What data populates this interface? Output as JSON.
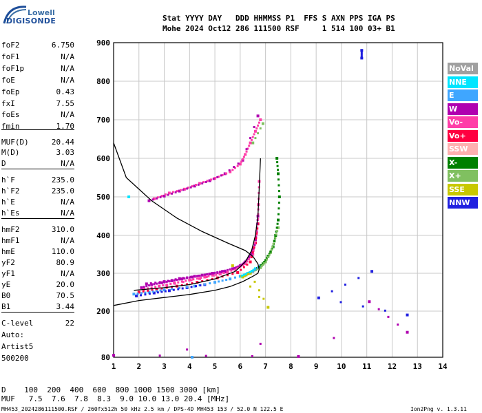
{
  "logo": {
    "line1": "Lowell",
    "line2": "DIGISONDE"
  },
  "header": {
    "row1": "Stat YYYY DAY   DDD HHMMSS P1  FFS S AXN PPS IGA PS",
    "row2": "Mohe 2024 Oct12 286 111500 RSF     1 514 100 03+ B1"
  },
  "params": [
    {
      "name": "foF2",
      "value": "6.750"
    },
    {
      "name": "foF1",
      "value": "N/A"
    },
    {
      "name": "foF1p",
      "value": "N/A"
    },
    {
      "name": "foE",
      "value": "N/A"
    },
    {
      "name": "foEp",
      "value": "0.43"
    },
    {
      "name": "fxI",
      "value": "7.55"
    },
    {
      "name": "foEs",
      "value": "N/A"
    },
    {
      "name": "fmin",
      "value": "1.70"
    },
    {
      "name": "MUF(D)",
      "value": "20.44"
    },
    {
      "name": "M(D)",
      "value": "3.03"
    },
    {
      "name": "D",
      "value": "N/A"
    },
    {
      "name": "h`F",
      "value": "235.0"
    },
    {
      "name": "h`F2",
      "value": "235.0"
    },
    {
      "name": "h`E",
      "value": "N/A"
    },
    {
      "name": "h`Es",
      "value": "N/A"
    },
    {
      "name": "hmF2",
      "value": "310.0"
    },
    {
      "name": "hmF1",
      "value": "N/A"
    },
    {
      "name": "hmE",
      "value": "110.0"
    },
    {
      "name": "yF2",
      "value": "80.9"
    },
    {
      "name": "yF1",
      "value": "N/A"
    },
    {
      "name": "yE",
      "value": "20.0"
    },
    {
      "name": "B0",
      "value": "70.5"
    },
    {
      "name": "B1",
      "value": "3.44"
    },
    {
      "name": "C-level",
      "value": "22"
    }
  ],
  "auto": {
    "label": "Auto:",
    "artist": "Artist5",
    "version": "500200"
  },
  "legend": [
    {
      "label": "NoVal",
      "color": "#a0a0a0"
    },
    {
      "label": "NNE",
      "color": "#00e5ff"
    },
    {
      "label": "E",
      "color": "#3fa6ff"
    },
    {
      "label": "W",
      "color": "#b000b0"
    },
    {
      "label": "Vo-",
      "color": "#ff3ea8"
    },
    {
      "label": "Vo+",
      "color": "#ff0040"
    },
    {
      "label": "SSW",
      "color": "#ffb0b0"
    },
    {
      "label": "X-",
      "color": "#008000"
    },
    {
      "label": "X+",
      "color": "#80c060"
    },
    {
      "label": "SSE",
      "color": "#c8c800"
    },
    {
      "label": "NNW",
      "color": "#2020e0"
    }
  ],
  "footer": {
    "d_row": "D    100  200  400  600  800 1000 1500 3000 [km]",
    "muf_row": "MUF   7.5  7.6  7.8  8.3  9.0 10.0 13.0 20.4 [MHz]",
    "file_info": "MH453_2024286111500.RSF / 260fx512h 50 kHz 2.5 km / DPS-4D MH453 153 / 52.0 N 122.5 E",
    "version": "Ion2Png v. 1.3.11"
  },
  "chart_data": {
    "type": "scatter",
    "xlabel": "",
    "ylabel": "",
    "x_ticks": [
      1,
      2,
      3,
      4,
      5,
      6,
      7,
      8,
      9,
      10,
      11,
      12,
      13,
      14
    ],
    "y_ticks": [
      80,
      200,
      300,
      400,
      500,
      600,
      700,
      800,
      900
    ],
    "xlim": [
      1,
      14
    ],
    "ylim_note": "virtual height axis, non-linear (80 at bottom, 900 at top)",
    "grid": true,
    "profile_curve": {
      "x": [
        1.0,
        2.0,
        3.0,
        4.0,
        5.0,
        5.6,
        6.1,
        6.5,
        6.7,
        6.75,
        6.7,
        6.5,
        6.2,
        5.5,
        4.5,
        3.5,
        2.5,
        1.5,
        1.0
      ],
      "y": [
        215,
        228,
        236,
        244,
        255,
        265,
        278,
        292,
        300,
        310,
        325,
        345,
        360,
        380,
        410,
        445,
        490,
        550,
        640
      ]
    },
    "o_trace_curve": {
      "x": [
        1.8,
        3.0,
        4.0,
        5.0,
        5.8,
        6.2,
        6.45,
        6.6,
        6.7,
        6.75,
        6.8
      ],
      "y": [
        255,
        262,
        270,
        285,
        305,
        330,
        360,
        400,
        450,
        520,
        600
      ]
    },
    "series": [
      {
        "name": "W",
        "color": "#b000b0",
        "x": [
          2.1,
          2.5,
          2.9,
          3.3,
          3.7,
          4.1,
          4.5,
          4.9,
          5.3,
          5.7,
          6.0,
          6.2,
          6.4,
          6.5,
          6.6,
          6.65,
          6.7,
          2.3,
          3.0,
          3.6,
          4.2,
          4.8,
          5.4
        ],
        "y": [
          262,
          270,
          275,
          280,
          285,
          290,
          295,
          300,
          305,
          312,
          320,
          330,
          345,
          360,
          380,
          410,
          450,
          272,
          278,
          286,
          292,
          298,
          304
        ]
      },
      {
        "name": "Vo-",
        "color": "#ff3ea8",
        "x": [
          2.2,
          2.8,
          3.4,
          4.0,
          4.6,
          5.2,
          5.8,
          6.2,
          6.5,
          6.6,
          6.7,
          6.72,
          6.75,
          3.1,
          4.4,
          5.5
        ],
        "y": [
          258,
          266,
          274,
          282,
          290,
          298,
          310,
          325,
          350,
          390,
          430,
          480,
          540,
          268,
          286,
          302
        ]
      },
      {
        "name": "Vo+",
        "color": "#ff0040",
        "x": [
          2.0,
          2.7,
          3.5,
          4.3,
          5.1,
          5.9,
          6.4,
          6.6,
          6.7
        ],
        "y": [
          250,
          258,
          266,
          276,
          288,
          302,
          330,
          380,
          430
        ]
      },
      {
        "name": "X-",
        "color": "#008000",
        "x": [
          6.3,
          6.6,
          6.9,
          7.1,
          7.3,
          7.4,
          7.5,
          7.55,
          7.5,
          7.45
        ],
        "y": [
          300,
          310,
          325,
          345,
          370,
          400,
          440,
          500,
          560,
          600
        ]
      },
      {
        "name": "X+",
        "color": "#80c060",
        "x": [
          6.2,
          6.5,
          6.8,
          7.0,
          7.2,
          7.35,
          7.5,
          6.5,
          6.9
        ],
        "y": [
          295,
          305,
          315,
          330,
          355,
          385,
          420,
          640,
          690
        ]
      },
      {
        "name": "E",
        "color": "#3fa6ff",
        "x": [
          1.8,
          2.4,
          3.0,
          4.2,
          5.0,
          5.6,
          6.4,
          6.8,
          4.1
        ],
        "y": [
          245,
          250,
          256,
          266,
          276,
          285,
          300,
          320,
          80
        ]
      },
      {
        "name": "NNW",
        "color": "#2020e0",
        "x": [
          1.9,
          2.6,
          3.2,
          3.9,
          4.6,
          10.8,
          10.8,
          11.2,
          9.1,
          12.6
        ],
        "y": [
          240,
          248,
          254,
          262,
          270,
          860,
          880,
          305,
          235,
          190
        ]
      },
      {
        "name": "SSE",
        "color": "#c8c800",
        "x": [
          6.1,
          6.4,
          7.1,
          5.7
        ],
        "y": [
          290,
          300,
          210,
          320
        ]
      },
      {
        "name": "NNE",
        "color": "#00e5ff",
        "x": [
          6.0,
          6.3,
          6.6,
          1.6
        ],
        "y": [
          292,
          300,
          312,
          500
        ]
      },
      {
        "name": "Vo- echo",
        "color": "#ff3ea8",
        "x": [
          2.6,
          3.2,
          3.8,
          4.4,
          5.0,
          5.6,
          6.0,
          6.2,
          6.4,
          6.6,
          6.8
        ],
        "y": [
          495,
          510,
          520,
          535,
          548,
          565,
          585,
          610,
          640,
          670,
          700
        ]
      },
      {
        "name": "W echo",
        "color": "#b000b0",
        "x": [
          2.4,
          3.0,
          3.6,
          4.2,
          4.8,
          5.4,
          6.1,
          6.7,
          11.1,
          12.6,
          1.0,
          8.3
        ],
        "y": [
          490,
          502,
          515,
          528,
          542,
          560,
          595,
          710,
          225,
          145,
          85,
          82
        ]
      }
    ]
  }
}
